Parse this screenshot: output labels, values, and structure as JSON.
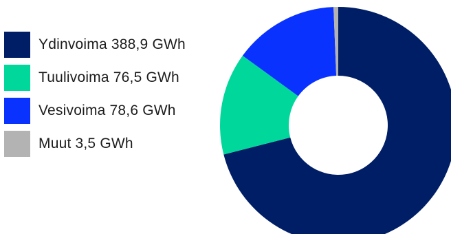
{
  "chart_data": {
    "type": "pie",
    "variant": "donut",
    "title": "",
    "unit": "GWh",
    "categories": [
      "Ydinvoima",
      "Tuulivoima",
      "Vesivoima",
      "Muut"
    ],
    "values": [
      388.9,
      76.5,
      78.6,
      3.5
    ],
    "colors": [
      "#001e66",
      "#00d89b",
      "#0a32ff",
      "#b3b3b3"
    ],
    "legend": {
      "placement": "left",
      "items": [
        {
          "label": "Ydinvoima 388,9 GWh",
          "color": "#001e66"
        },
        {
          "label": "Tuulivoima 76,5 GWh",
          "color": "#00d89b"
        },
        {
          "label": "Vesivoima 78,6 GWh",
          "color": "#0a32ff"
        },
        {
          "label": "Muut 3,5 GWh",
          "color": "#b3b3b3"
        }
      ]
    }
  }
}
